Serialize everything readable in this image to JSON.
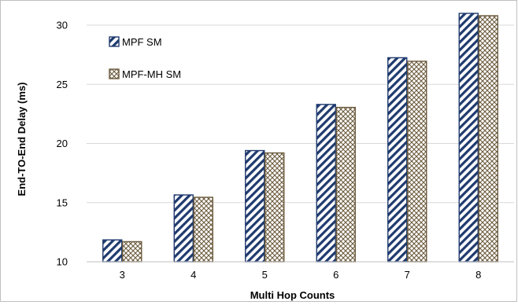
{
  "chart_data": {
    "type": "bar",
    "title": "",
    "xlabel": "Multi Hop Counts",
    "ylabel": "End-TO-End Delay (ms)",
    "categories": [
      "3",
      "4",
      "5",
      "6",
      "7",
      "8"
    ],
    "ylim": [
      10,
      31
    ],
    "yticks": [
      "10",
      "15",
      "20",
      "25",
      "30"
    ],
    "ytick_values": [
      10,
      15,
      20,
      25,
      30
    ],
    "grid": "horizontal",
    "legend_position": "top-left",
    "series": [
      {
        "name": "MPF SM",
        "values": [
          11.85,
          15.65,
          19.4,
          23.3,
          27.25,
          31.0
        ],
        "color": "#1f3a6e",
        "pattern": "diagonal-stripes"
      },
      {
        "name": "MPF-MH SM",
        "values": [
          11.7,
          15.45,
          19.2,
          23.05,
          26.95,
          30.8
        ],
        "color": "#6b5a3c",
        "pattern": "crosshatch"
      }
    ]
  }
}
